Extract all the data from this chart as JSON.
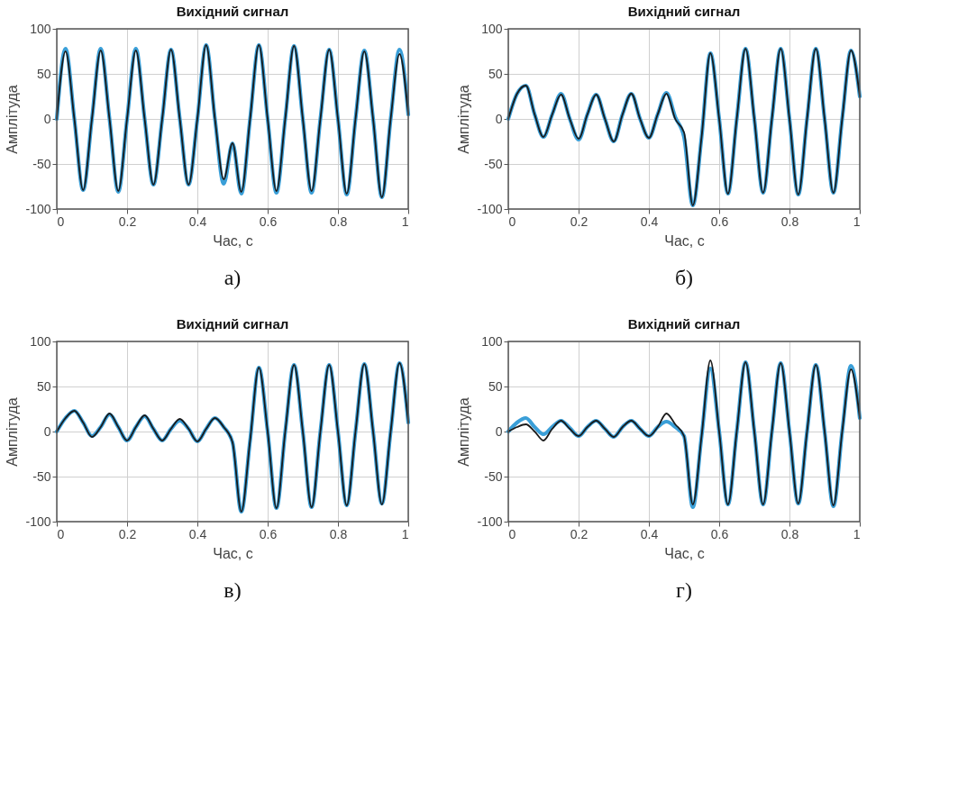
{
  "chart_data": [
    {
      "type": "line",
      "title": "Вихідний сигнал",
      "xlabel": "Час, с",
      "ylabel": "Амплітуда",
      "annotations": [
        "а)"
      ],
      "grid": true,
      "xlim": [
        0,
        1
      ],
      "ylim": [
        -100,
        100
      ],
      "xticks": [
        0,
        0.2,
        0.4,
        0.6,
        0.8,
        1
      ],
      "yticks": [
        -100,
        -50,
        0,
        50,
        100
      ],
      "x": [
        0,
        0.025,
        0.05,
        0.075,
        0.1,
        0.125,
        0.15,
        0.175,
        0.2,
        0.225,
        0.25,
        0.275,
        0.3,
        0.325,
        0.35,
        0.375,
        0.4,
        0.425,
        0.45,
        0.475,
        0.5,
        0.525,
        0.55,
        0.575,
        0.6,
        0.625,
        0.65,
        0.675,
        0.7,
        0.725,
        0.75,
        0.775,
        0.8,
        0.825,
        0.85,
        0.875,
        0.9,
        0.925,
        0.95,
        0.975,
        1
      ],
      "series": [
        {
          "color": "#3a9fd8",
          "values": [
            0,
            78,
            0,
            -79,
            0,
            78,
            0,
            -81,
            0,
            78,
            0,
            -73,
            0,
            77,
            0,
            -73,
            0,
            82,
            0,
            -72,
            -27,
            -83,
            0,
            82,
            0,
            -82,
            0,
            81,
            0,
            -82,
            0,
            77,
            0,
            -84,
            0,
            76,
            0,
            -87,
            0,
            77,
            5
          ]
        },
        {
          "color": "#1a1a1a",
          "values": [
            0,
            75,
            0,
            -79,
            0,
            76,
            0,
            -80,
            0,
            76,
            0,
            -73,
            0,
            77,
            0,
            -73,
            0,
            82,
            0,
            -67,
            -27,
            -81,
            0,
            82,
            0,
            -80,
            0,
            81,
            0,
            -80,
            0,
            77,
            0,
            -83,
            0,
            75,
            0,
            -87,
            0,
            72,
            5
          ]
        }
      ]
    },
    {
      "type": "line",
      "title": "Вихідний сигнал",
      "xlabel": "Час, с",
      "ylabel": "Амплітуда",
      "annotations": [
        "б)"
      ],
      "grid": true,
      "xlim": [
        0,
        1
      ],
      "ylim": [
        -100,
        100
      ],
      "xticks": [
        0,
        0.2,
        0.4,
        0.6,
        0.8,
        1
      ],
      "yticks": [
        -100,
        -50,
        0,
        50,
        100
      ],
      "x": [
        0,
        0.025,
        0.05,
        0.075,
        0.1,
        0.125,
        0.15,
        0.175,
        0.2,
        0.225,
        0.25,
        0.275,
        0.3,
        0.325,
        0.35,
        0.375,
        0.4,
        0.425,
        0.45,
        0.475,
        0.5,
        0.525,
        0.55,
        0.575,
        0.6,
        0.625,
        0.65,
        0.675,
        0.7,
        0.725,
        0.75,
        0.775,
        0.8,
        0.825,
        0.85,
        0.875,
        0.9,
        0.925,
        0.95,
        0.975,
        1
      ],
      "series": [
        {
          "color": "#3a9fd8",
          "values": [
            0,
            28,
            37,
            5,
            -20,
            5,
            28,
            0,
            -23,
            5,
            27,
            0,
            -25,
            5,
            28,
            0,
            -21,
            5,
            29,
            2,
            -20,
            -96,
            -20,
            73,
            0,
            -83,
            0,
            78,
            0,
            -82,
            0,
            78,
            0,
            -84,
            0,
            78,
            0,
            -82,
            0,
            76,
            25
          ]
        },
        {
          "color": "#1a1a1a",
          "values": [
            0,
            28,
            37,
            5,
            -20,
            5,
            27,
            0,
            -22,
            5,
            27,
            0,
            -25,
            5,
            28,
            0,
            -21,
            5,
            28,
            0,
            -15,
            -96,
            -20,
            73,
            0,
            -83,
            0,
            78,
            0,
            -82,
            0,
            78,
            0,
            -84,
            0,
            78,
            0,
            -82,
            0,
            76,
            25
          ]
        }
      ]
    },
    {
      "type": "line",
      "title": "Вихідний сигнал",
      "xlabel": "Час, с",
      "ylabel": "Амплітуда",
      "annotations": [
        "в)"
      ],
      "grid": true,
      "xlim": [
        0,
        1
      ],
      "ylim": [
        -100,
        100
      ],
      "xticks": [
        0,
        0.2,
        0.4,
        0.6,
        0.8,
        1
      ],
      "yticks": [
        -100,
        -50,
        0,
        50,
        100
      ],
      "x": [
        0,
        0.025,
        0.05,
        0.075,
        0.1,
        0.125,
        0.15,
        0.175,
        0.2,
        0.225,
        0.25,
        0.275,
        0.3,
        0.325,
        0.35,
        0.375,
        0.4,
        0.425,
        0.45,
        0.475,
        0.5,
        0.525,
        0.55,
        0.575,
        0.6,
        0.625,
        0.65,
        0.675,
        0.7,
        0.725,
        0.75,
        0.775,
        0.8,
        0.825,
        0.85,
        0.875,
        0.9,
        0.925,
        0.95,
        0.975,
        1
      ],
      "series": [
        {
          "color": "#3a9fd8",
          "values": [
            0,
            15,
            23,
            10,
            -5,
            5,
            19,
            5,
            -10,
            5,
            17,
            3,
            -10,
            3,
            12,
            3,
            -11,
            3,
            15,
            5,
            -12,
            -89,
            -10,
            71,
            0,
            -85,
            0,
            74,
            0,
            -84,
            0,
            74,
            0,
            -82,
            0,
            75,
            0,
            -80,
            0,
            76,
            10
          ]
        },
        {
          "color": "#1a1a1a",
          "values": [
            0,
            15,
            23,
            10,
            -6,
            5,
            20,
            5,
            -10,
            5,
            18,
            3,
            -10,
            3,
            14,
            3,
            -11,
            3,
            15,
            5,
            -12,
            -89,
            -10,
            71,
            0,
            -85,
            0,
            74,
            0,
            -84,
            0,
            74,
            0,
            -82,
            0,
            75,
            0,
            -81,
            0,
            76,
            10
          ]
        }
      ]
    },
    {
      "type": "line",
      "title": "Вихідний сигнал",
      "xlabel": "Час, с",
      "ylabel": "Амплітуда",
      "annotations": [
        "г)"
      ],
      "grid": true,
      "xlim": [
        0,
        1
      ],
      "ylim": [
        -100,
        100
      ],
      "xticks": [
        0,
        0.2,
        0.4,
        0.6,
        0.8,
        1
      ],
      "yticks": [
        -100,
        -50,
        0,
        50,
        100
      ],
      "x": [
        0,
        0.025,
        0.05,
        0.075,
        0.1,
        0.125,
        0.15,
        0.175,
        0.2,
        0.225,
        0.25,
        0.275,
        0.3,
        0.325,
        0.35,
        0.375,
        0.4,
        0.425,
        0.45,
        0.475,
        0.5,
        0.525,
        0.55,
        0.575,
        0.6,
        0.625,
        0.65,
        0.675,
        0.7,
        0.725,
        0.75,
        0.775,
        0.8,
        0.825,
        0.85,
        0.875,
        0.9,
        0.925,
        0.95,
        0.975,
        1
      ],
      "series": [
        {
          "color": "#3a9fd8",
          "values": [
            0,
            10,
            15,
            5,
            -3,
            5,
            12,
            4,
            -5,
            5,
            12,
            3,
            -6,
            5,
            12,
            3,
            -5,
            5,
            11,
            5,
            -5,
            -84,
            -5,
            70,
            0,
            -81,
            0,
            77,
            0,
            -81,
            0,
            76,
            0,
            -80,
            0,
            74,
            0,
            -83,
            0,
            73,
            15
          ]
        },
        {
          "color": "#1a1a1a",
          "values": [
            0,
            5,
            8,
            0,
            -10,
            3,
            12,
            3,
            -5,
            5,
            12,
            3,
            -6,
            5,
            12,
            3,
            -5,
            5,
            20,
            8,
            -5,
            -81,
            -5,
            79,
            0,
            -81,
            0,
            77,
            0,
            -81,
            0,
            76,
            0,
            -80,
            0,
            74,
            0,
            -82,
            0,
            69,
            15
          ]
        }
      ]
    }
  ]
}
